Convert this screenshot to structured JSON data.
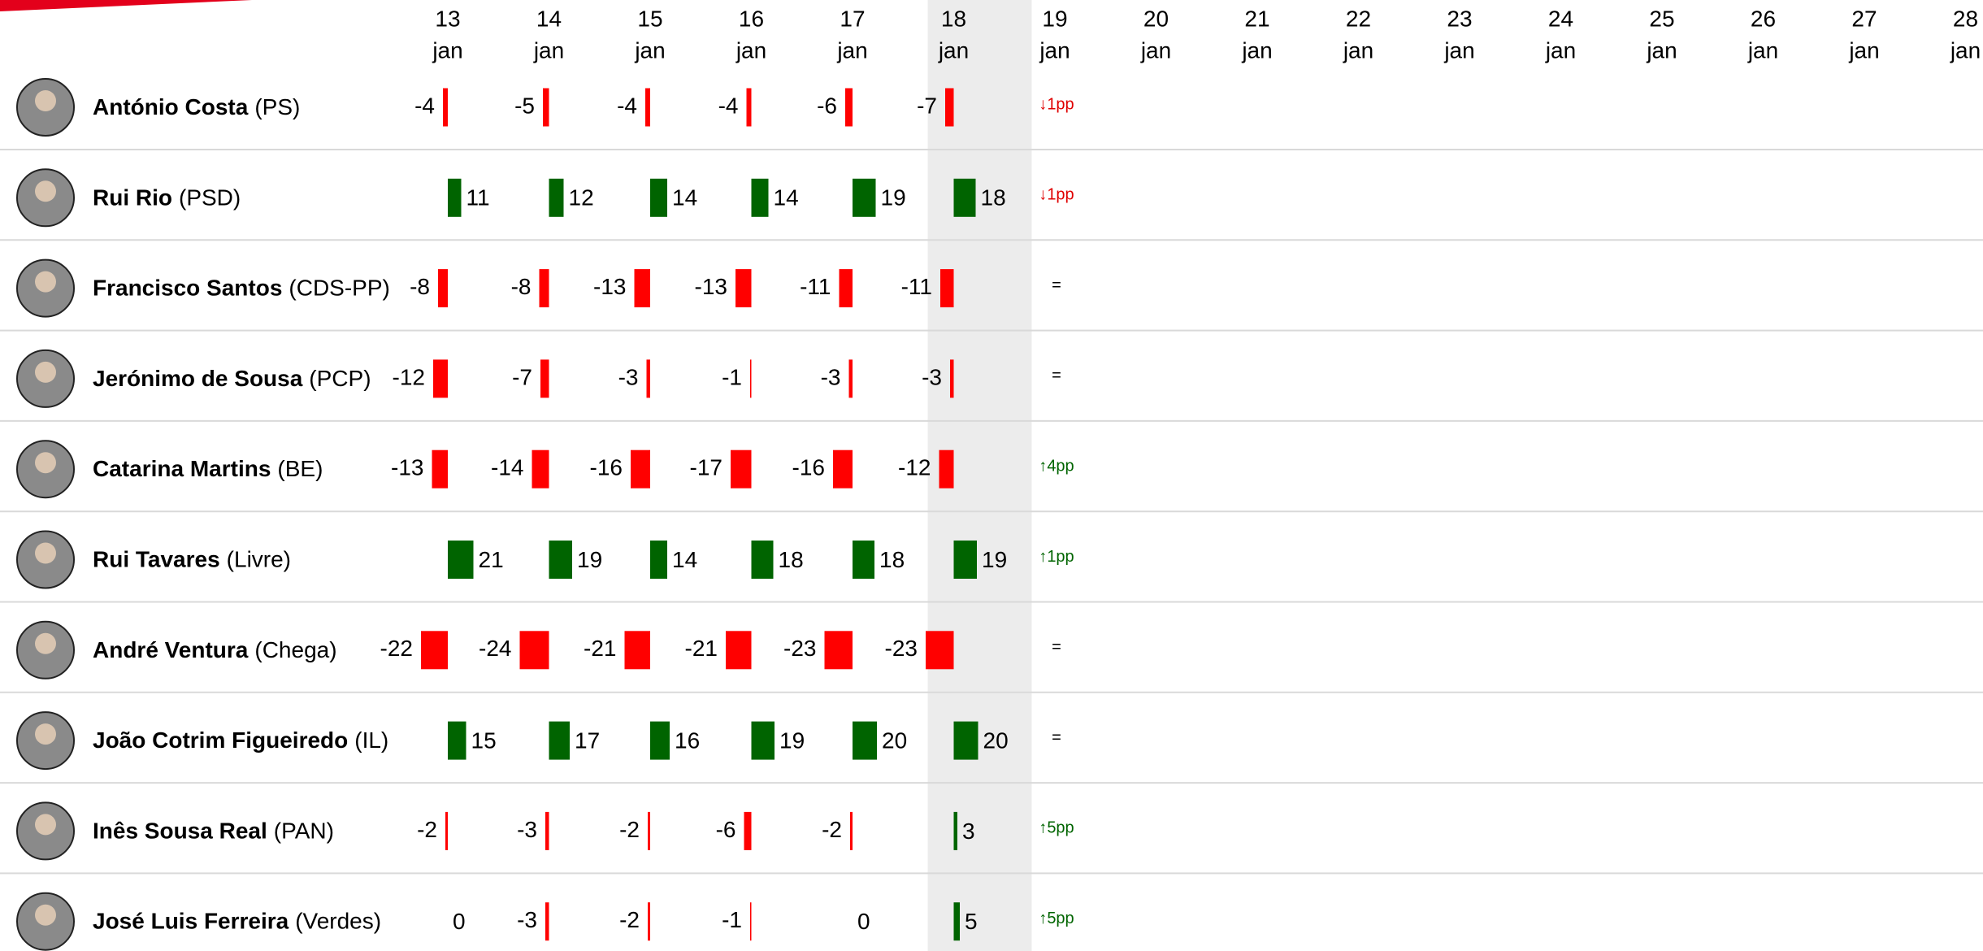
{
  "chart_data": {
    "type": "diverging-bar-table",
    "categories": [
      "13",
      "14",
      "15",
      "16",
      "17",
      "18",
      "19",
      "20",
      "21",
      "22",
      "23",
      "24",
      "25",
      "26",
      "27",
      "28"
    ],
    "month": "jan",
    "highlight": "18",
    "color_positive": "#006400",
    "color_negative": "#ff0000",
    "series": [
      {
        "name": "António Costa",
        "party": "(PS)",
        "values": [
          -4,
          -5,
          -4,
          -4,
          -6,
          -7,
          null,
          null,
          null,
          null,
          null,
          null,
          null,
          null,
          null,
          null
        ],
        "change": "↓1pp",
        "change_color": "#e00000"
      },
      {
        "name": "Rui Rio",
        "party": "(PSD)",
        "values": [
          11,
          12,
          14,
          14,
          19,
          18,
          null,
          null,
          null,
          null,
          null,
          null,
          null,
          null,
          null,
          null
        ],
        "change": "↓1pp",
        "change_color": "#e00000"
      },
      {
        "name": "Francisco Santos",
        "party": "(CDS-PP)",
        "values": [
          -8,
          -8,
          -13,
          -13,
          -11,
          -11,
          null,
          null,
          null,
          null,
          null,
          null,
          null,
          null,
          null,
          null
        ],
        "change": "=",
        "change_color": "#000000"
      },
      {
        "name": "Jerónimo de Sousa",
        "party": "(PCP)",
        "values": [
          -12,
          -7,
          -3,
          -1,
          -3,
          -3,
          null,
          null,
          null,
          null,
          null,
          null,
          null,
          null,
          null,
          null
        ],
        "change": "=",
        "change_color": "#000000"
      },
      {
        "name": "Catarina Martins",
        "party": "(BE)",
        "values": [
          -13,
          -14,
          -16,
          -17,
          -16,
          -12,
          null,
          null,
          null,
          null,
          null,
          null,
          null,
          null,
          null,
          null
        ],
        "change": "↑4pp",
        "change_color": "#006400"
      },
      {
        "name": "Rui Tavares",
        "party": "(Livre)",
        "values": [
          21,
          19,
          14,
          18,
          18,
          19,
          null,
          null,
          null,
          null,
          null,
          null,
          null,
          null,
          null,
          null
        ],
        "change": "↑1pp",
        "change_color": "#006400"
      },
      {
        "name": "André Ventura",
        "party": "(Chega)",
        "values": [
          -22,
          -24,
          -21,
          -21,
          -23,
          -23,
          null,
          null,
          null,
          null,
          null,
          null,
          null,
          null,
          null,
          null
        ],
        "change": "=",
        "change_color": "#000000"
      },
      {
        "name": "João Cotrim Figueiredo",
        "party": "(IL)",
        "values": [
          15,
          17,
          16,
          19,
          20,
          20,
          null,
          null,
          null,
          null,
          null,
          null,
          null,
          null,
          null,
          null
        ],
        "change": "=",
        "change_color": "#000000"
      },
      {
        "name": "Inês Sousa Real",
        "party": "(PAN)",
        "values": [
          -2,
          -3,
          -2,
          -6,
          -2,
          3,
          null,
          null,
          null,
          null,
          null,
          null,
          null,
          null,
          null,
          null
        ],
        "change": "↑5pp",
        "change_color": "#006400"
      },
      {
        "name": "José Luis Ferreira",
        "party": "(Verdes)",
        "values": [
          0,
          -3,
          -2,
          -1,
          0,
          5,
          null,
          null,
          null,
          null,
          null,
          null,
          null,
          null,
          null,
          null
        ],
        "change": "↑5pp",
        "change_color": "#006400"
      }
    ]
  }
}
